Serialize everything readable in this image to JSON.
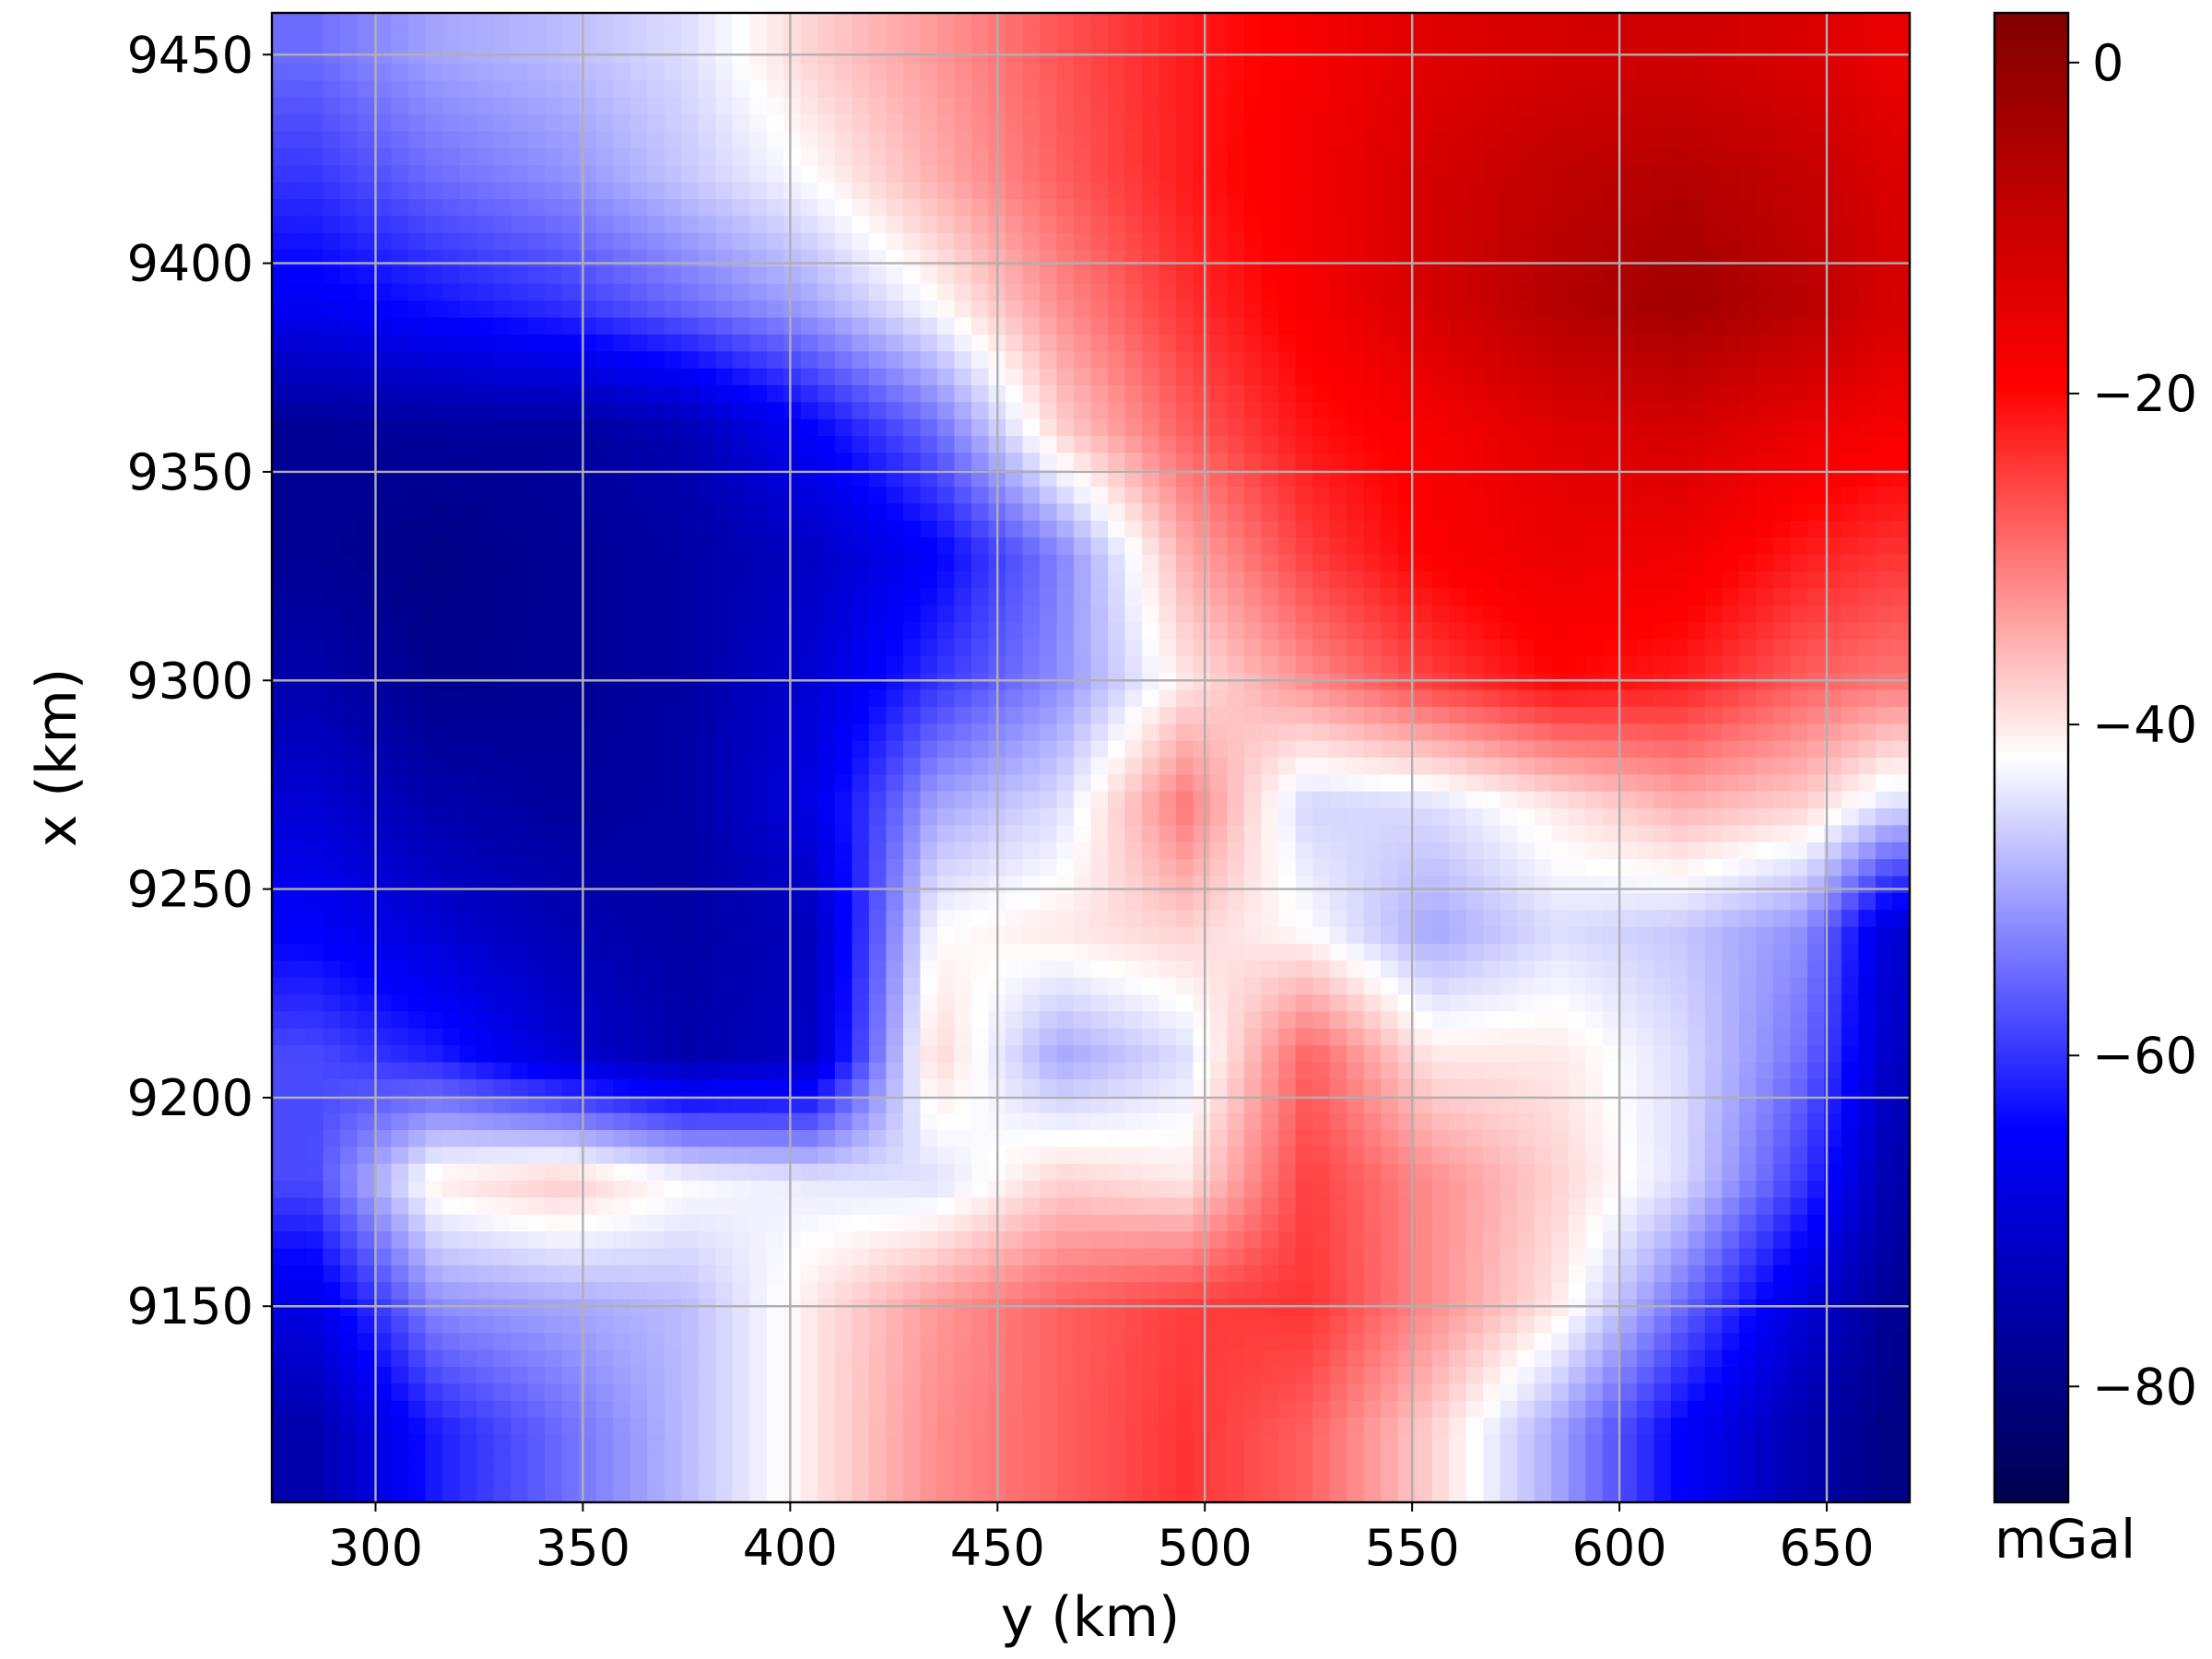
{
  "chart_data": {
    "type": "heatmap",
    "title": "",
    "xlabel": "y (km)",
    "ylabel": "x (km)",
    "xlim": [
      275,
      670
    ],
    "ylim": [
      9103,
      9460
    ],
    "x_ticks": [
      300,
      350,
      400,
      450,
      500,
      550,
      600,
      650
    ],
    "y_ticks": [
      9150,
      9200,
      9250,
      9300,
      9350,
      9400,
      9450
    ],
    "grid": true,
    "colormap": {
      "name": "seismic",
      "stops": [
        "#00004d",
        "#0000ff",
        "#ffffff",
        "#ff0000",
        "#800000"
      ]
    },
    "colorbar": {
      "label": "mGal",
      "range": [
        -87,
        3
      ],
      "ticks": [
        0,
        -20,
        -40,
        -60,
        -80
      ],
      "tick_labels": [
        "0",
        "−20",
        "−40",
        "−60",
        "−80"
      ]
    },
    "value_grid": {
      "x": [
        285,
        315,
        345,
        375,
        405,
        435,
        465,
        495,
        525,
        555,
        585,
        615,
        645,
        665
      ],
      "y": [
        9450,
        9420,
        9390,
        9360,
        9330,
        9300,
        9270,
        9240,
        9210,
        9180,
        9150,
        9120
      ],
      "values": [
        [
          -55,
          -50,
          -48,
          -45,
          -38,
          -33,
          -27,
          -22,
          -18,
          -14,
          -12,
          -11,
          -13,
          -16
        ],
        [
          -60,
          -55,
          -52,
          -47,
          -42,
          -35,
          -28,
          -22,
          -17,
          -12,
          -8,
          -6,
          -9,
          -13
        ],
        [
          -66,
          -63,
          -60,
          -55,
          -50,
          -42,
          -32,
          -24,
          -18,
          -12,
          -6,
          -3,
          -7,
          -12
        ],
        [
          -78,
          -77,
          -77,
          -74,
          -65,
          -55,
          -38,
          -28,
          -21,
          -18,
          -14,
          -12,
          -16,
          -18
        ],
        [
          -78,
          -80,
          -78,
          -76,
          -72,
          -65,
          -53,
          -35,
          -25,
          -19,
          -16,
          -17,
          -22,
          -24
        ],
        [
          -75,
          -79,
          -78,
          -76,
          -70,
          -60,
          -52,
          -40,
          -32,
          -25,
          -20,
          -22,
          -28,
          -30
        ],
        [
          -70,
          -75,
          -77,
          -76,
          -68,
          -50,
          -45,
          -30,
          -46,
          -45,
          -40,
          -35,
          -38,
          -45
        ],
        [
          -65,
          -70,
          -74,
          -76,
          -73,
          -42,
          -40,
          -38,
          -42,
          -50,
          -45,
          -47,
          -52,
          -70
        ],
        [
          -58,
          -62,
          -70,
          -75,
          -72,
          -38,
          -50,
          -45,
          -28,
          -40,
          -40,
          -45,
          -55,
          -72
        ],
        [
          -58,
          -40,
          -37,
          -42,
          -44,
          -45,
          -38,
          -40,
          -25,
          -32,
          -38,
          -45,
          -60,
          -75
        ],
        [
          -68,
          -52,
          -50,
          -48,
          -40,
          -33,
          -28,
          -25,
          -24,
          -32,
          -40,
          -55,
          -70,
          -78
        ],
        [
          -75,
          -62,
          -55,
          -48,
          -40,
          -32,
          -28,
          -24,
          -28,
          -38,
          -50,
          -65,
          -75,
          -80
        ]
      ]
    }
  }
}
